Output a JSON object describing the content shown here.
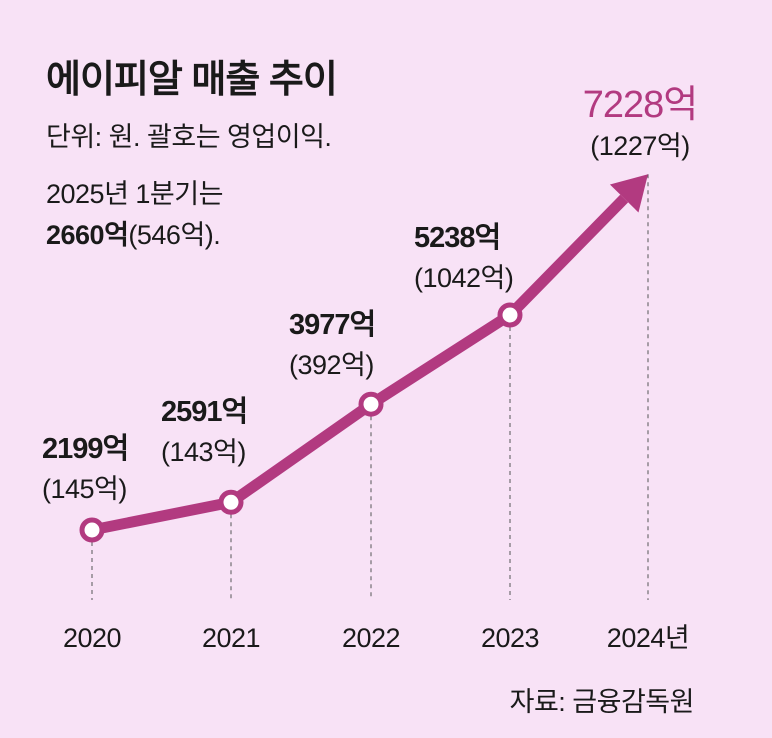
{
  "title": "에이피알 매출 추이",
  "note_unit": "단위: 원. 괄호는 영업이익.",
  "note_q1_line1": "2025년 1분기는",
  "note_q1_value": "2660억",
  "note_q1_profit": "(546억).",
  "source": "자료: 금융감독원",
  "colors": {
    "line": "#b23a80",
    "highlight": "#b23a80",
    "background": "#f8e2f6",
    "text": "#1a1a1a"
  },
  "chart_data": {
    "type": "line",
    "title": "에이피알 매출 추이",
    "xlabel": "",
    "ylabel": "",
    "x": [
      "2020",
      "2021",
      "2022",
      "2023",
      "2024년"
    ],
    "series": [
      {
        "name": "매출",
        "values": [
          2199,
          2591,
          3977,
          5238,
          7228
        ]
      },
      {
        "name": "영업이익",
        "values": [
          145,
          143,
          392,
          1042,
          1227
        ]
      }
    ],
    "value_labels": [
      "2199억",
      "2591억",
      "3977억",
      "5238억",
      "7228억"
    ],
    "profit_labels": [
      "(145억)",
      "(143억)",
      "(392억)",
      "(1042억)",
      "(1227억)"
    ],
    "ylim": [
      1500,
      7800
    ],
    "grid": false,
    "legend": "none"
  }
}
